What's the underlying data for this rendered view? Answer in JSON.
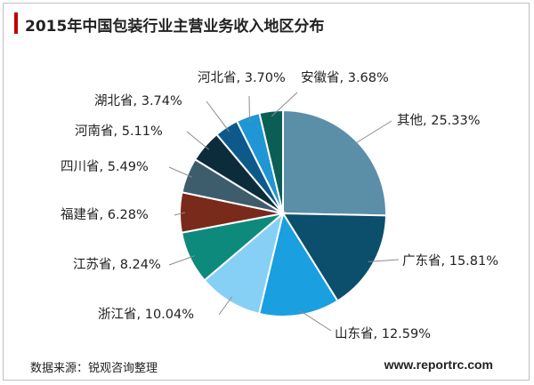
{
  "header": {
    "title": "2015年中国包装行业主营业务收入地区分布"
  },
  "footer": {
    "source": "数据来源：锐观咨询整理",
    "website": "www.reportrc.com"
  },
  "chart_data": {
    "type": "pie",
    "title": "2015年中国包装行业主营业务收入地区分布",
    "slices": [
      {
        "name": "其他",
        "value": 25.33,
        "label": "其他, 25.33%",
        "color": "#5b8fa8"
      },
      {
        "name": "广东省",
        "value": 15.81,
        "label": "广东省, 15.81%",
        "color": "#0b4f6c"
      },
      {
        "name": "山东省",
        "value": 12.59,
        "label": "山东省, 12.59%",
        "color": "#1a9fe0"
      },
      {
        "name": "浙江省",
        "value": 10.04,
        "label": "浙江省, 10.04%",
        "color": "#86d0f5"
      },
      {
        "name": "江苏省",
        "value": 8.24,
        "label": "江苏省, 8.24%",
        "color": "#0e8a7d"
      },
      {
        "name": "福建省",
        "value": 6.28,
        "label": "福建省, 6.28%",
        "color": "#7a2a1a"
      },
      {
        "name": "四川省",
        "value": 5.49,
        "label": "四川省, 5.49%",
        "color": "#3e5d6c"
      },
      {
        "name": "河南省",
        "value": 5.11,
        "label": "河南省, 5.11%",
        "color": "#0c2c3c"
      },
      {
        "name": "湖北省",
        "value": 3.74,
        "label": "湖北省, 3.74%",
        "color": "#0d5a8a"
      },
      {
        "name": "河北省",
        "value": 3.7,
        "label": "河北省, 3.70%",
        "color": "#2096d4"
      },
      {
        "name": "安徽省",
        "value": 3.68,
        "label": "安徽省, 3.68%",
        "color": "#0b5e54"
      }
    ]
  }
}
